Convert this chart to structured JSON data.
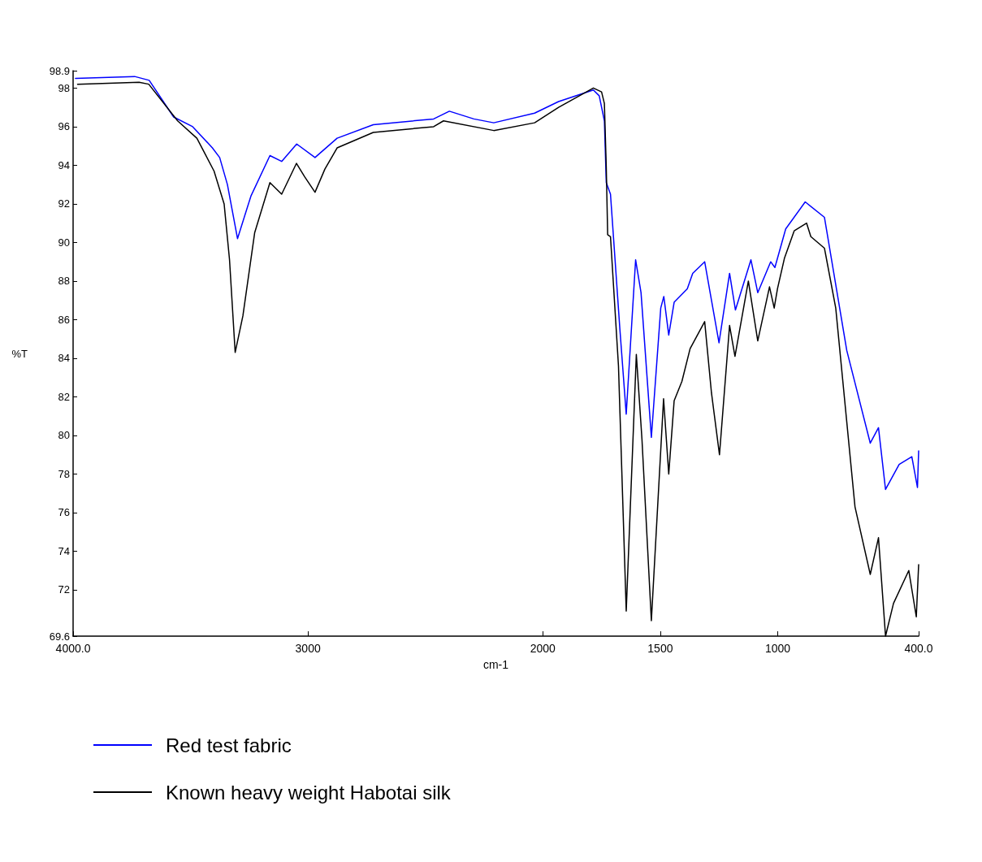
{
  "chart_data": {
    "type": "line",
    "xlabel": "cm-1",
    "ylabel": "%T",
    "xlim": [
      4000,
      400
    ],
    "xticks": [
      {
        "value": 4000,
        "label": "4000.0"
      },
      3000,
      2000,
      1500,
      1000,
      {
        "value": 400,
        "label": "400.0"
      }
    ],
    "ylim": [
      69.6,
      98.9
    ],
    "yticks": [
      69.6,
      72,
      74,
      76,
      78,
      80,
      82,
      84,
      86,
      88,
      90,
      92,
      94,
      96,
      98,
      98.9
    ],
    "grid": false,
    "legend": "bottom left",
    "marker": "none",
    "line_style": "solid",
    "series": [
      {
        "name": "Red test fabric",
        "color": "#0000ff",
        "x": [
          3990,
          3738,
          3676,
          3572,
          3491,
          3407,
          3376,
          3343,
          3300,
          3243,
          3162,
          3112,
          3048,
          2970,
          2876,
          2722,
          2465,
          2398,
          2294,
          2209,
          2035,
          1933,
          1785,
          1760,
          1738,
          1730,
          1712,
          1672,
          1645,
          1605,
          1582,
          1538,
          1498,
          1485,
          1464,
          1441,
          1385,
          1362,
          1311,
          1282,
          1250,
          1205,
          1180,
          1114,
          1085,
          1030,
          1012,
          966,
          883,
          801,
          706,
          606,
          571,
          541,
          483,
          429,
          405,
          400
        ],
        "values": [
          98.5,
          98.6,
          98.4,
          96.5,
          96.0,
          94.9,
          94.4,
          93.0,
          90.2,
          92.4,
          94.5,
          94.2,
          95.1,
          94.4,
          95.4,
          96.1,
          96.4,
          96.8,
          96.4,
          96.2,
          96.7,
          97.3,
          97.9,
          97.6,
          96.3,
          93.1,
          92.5,
          85.5,
          81.1,
          89.1,
          87.4,
          79.9,
          86.6,
          87.2,
          85.2,
          86.9,
          87.6,
          88.4,
          89.0,
          87.0,
          84.8,
          88.4,
          86.5,
          89.1,
          87.4,
          89.0,
          88.7,
          90.7,
          92.1,
          91.3,
          84.4,
          79.6,
          80.4,
          77.2,
          78.5,
          78.9,
          77.3,
          79.2
        ]
      },
      {
        "name": "Known heavy weight Habotai silk",
        "color": "#000000",
        "x": [
          3981,
          3719,
          3678,
          3555,
          3473,
          3400,
          3357,
          3334,
          3310,
          3277,
          3227,
          3162,
          3112,
          3049,
          3014,
          2970,
          2928,
          2876,
          2722,
          2465,
          2423,
          2209,
          2035,
          1933,
          1785,
          1750,
          1738,
          1730,
          1724,
          1712,
          1678,
          1645,
          1602,
          1578,
          1538,
          1486,
          1464,
          1441,
          1408,
          1373,
          1311,
          1282,
          1248,
          1205,
          1182,
          1125,
          1085,
          1035,
          1015,
          1001,
          971,
          930,
          877,
          859,
          801,
          753,
          671,
          606,
          571,
          541,
          507,
          442,
          410,
          400
        ],
        "values": [
          98.2,
          98.3,
          98.2,
          96.3,
          95.4,
          93.7,
          92.0,
          89.1,
          84.3,
          86.2,
          90.5,
          93.1,
          92.5,
          94.1,
          93.4,
          92.6,
          93.8,
          94.9,
          95.7,
          96.0,
          96.3,
          95.8,
          96.2,
          97.0,
          98.0,
          97.8,
          97.2,
          93.9,
          90.4,
          90.3,
          83.6,
          70.9,
          84.2,
          79.8,
          70.4,
          81.9,
          78.0,
          81.8,
          82.8,
          84.5,
          85.9,
          82.2,
          79.0,
          85.7,
          84.1,
          88.0,
          84.9,
          87.7,
          86.6,
          87.6,
          89.2,
          90.6,
          91.0,
          90.3,
          89.7,
          86.6,
          76.3,
          72.8,
          74.7,
          69.6,
          71.3,
          73.0,
          70.6,
          73.3
        ]
      }
    ]
  }
}
